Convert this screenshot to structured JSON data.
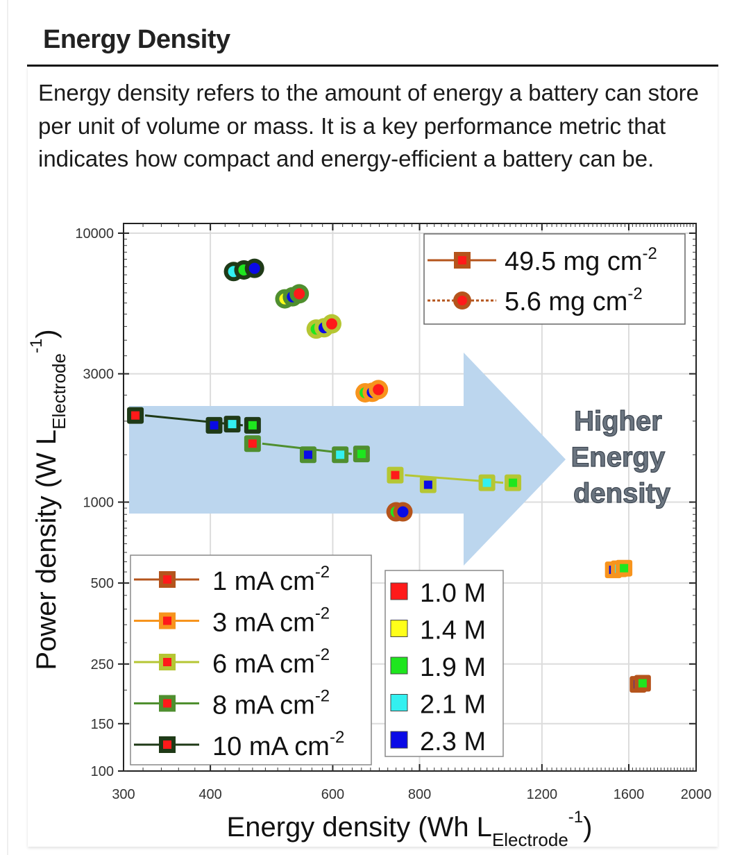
{
  "header": {
    "title": "Energy Density",
    "description": "Energy density refers to the amount of energy a battery can store per unit of volume or mass. It is a key performance metric that indicates how compact and energy-efficient a battery can be."
  },
  "chart_data": {
    "type": "scatter",
    "title": "",
    "xlabel": "Energy density (Wh L",
    "xlabel_sub": "Electrode",
    "xlabel_sup": "-1",
    "ylabel": "Power density (W L",
    "ylabel_sub": "Electrode",
    "ylabel_sup": "-1",
    "xscale": "log",
    "yscale": "log",
    "xlim": [
      300,
      2000
    ],
    "ylim": [
      100,
      10000
    ],
    "xticks": [
      300,
      400,
      600,
      800,
      1200,
      1600,
      2000
    ],
    "yticks": [
      100,
      150,
      250,
      500,
      1000,
      3000,
      10000
    ],
    "grid": true,
    "annotation": {
      "lines": [
        "Higher",
        "Energy",
        "density"
      ],
      "arrow_color": "#bcd6ee"
    },
    "loading_legend": {
      "placement": "top-right",
      "items": [
        {
          "label": "49.5 mg cm",
          "sup": "-2",
          "marker": "square",
          "line": "solid",
          "color": "#b5541c"
        },
        {
          "label": "5.6 mg cm",
          "sup": "-2",
          "marker": "circle",
          "line": "dotted",
          "color": "#b5541c"
        }
      ]
    },
    "current_legend": {
      "placement": "bottom-left",
      "items": [
        {
          "label": "1 mA cm",
          "sup": "-2",
          "color": "#b5541c"
        },
        {
          "label": "3 mA cm",
          "sup": "-2",
          "color": "#f7941d"
        },
        {
          "label": "6 mA cm",
          "sup": "-2",
          "color": "#b5c633"
        },
        {
          "label": "8 mA cm",
          "sup": "-2",
          "color": "#4f8f2f"
        },
        {
          "label": "10 mA cm",
          "sup": "-2",
          "color": "#1f3a17"
        }
      ]
    },
    "concentration_legend": {
      "placement": "bottom-center",
      "items": [
        {
          "label": "1.0 M",
          "color": "#ff1a1a"
        },
        {
          "label": "1.4 M",
          "color": "#ffff1a"
        },
        {
          "label": "1.9 M",
          "color": "#1ee61e"
        },
        {
          "label": "2.1 M",
          "color": "#33f0f0"
        },
        {
          "label": "2.3 M",
          "color": "#0a0ae6"
        }
      ]
    },
    "series": [
      {
        "name": "5.6 mg cm-2 @ 10 mA cm-2",
        "loading": "5.6",
        "current": "10",
        "marker": "circle",
        "edge": "#1f3a17",
        "points": [
          {
            "x": 432,
            "y": 7200,
            "c": "2.1 M"
          },
          {
            "x": 447,
            "y": 7300,
            "c": "1.9 M"
          },
          {
            "x": 463,
            "y": 7400,
            "c": "2.3 M"
          }
        ]
      },
      {
        "name": "5.6 mg cm-2 @ 8 mA cm-2",
        "loading": "5.6",
        "current": "8",
        "marker": "circle",
        "edge": "#4f8f2f",
        "points": [
          {
            "x": 512,
            "y": 5700,
            "c": "1.4 M"
          },
          {
            "x": 525,
            "y": 5800,
            "c": "2.3 M"
          },
          {
            "x": 537,
            "y": 5950,
            "c": "1.0 M"
          }
        ]
      },
      {
        "name": "5.6 mg cm-2 @ 6 mA cm-2",
        "loading": "5.6",
        "current": "6",
        "marker": "circle",
        "edge": "#b5c633",
        "points": [
          {
            "x": 568,
            "y": 4400,
            "c": "1.9 M"
          },
          {
            "x": 583,
            "y": 4450,
            "c": "2.3 M"
          },
          {
            "x": 598,
            "y": 4600,
            "c": "1.0 M"
          }
        ]
      },
      {
        "name": "5.6 mg cm-2 @ 3 mA cm-2",
        "loading": "5.6",
        "current": "3",
        "marker": "circle",
        "edge": "#f7941d",
        "points": [
          {
            "x": 668,
            "y": 2550,
            "c": "1.9 M"
          },
          {
            "x": 684,
            "y": 2560,
            "c": "2.3 M"
          },
          {
            "x": 698,
            "y": 2620,
            "c": "1.0 M"
          }
        ]
      },
      {
        "name": "5.6 mg cm-2 @ 1 mA cm-2",
        "loading": "5.6",
        "current": "1",
        "marker": "circle",
        "edge": "#b5541c",
        "points": [
          {
            "x": 740,
            "y": 920,
            "c": "1.9 M"
          },
          {
            "x": 757,
            "y": 920,
            "c": "2.3 M"
          }
        ]
      },
      {
        "name": "49.5 mg cm-2 @ 10 mA cm-2",
        "loading": "49.5",
        "current": "10",
        "marker": "square",
        "edge": "#1f3a17",
        "points": [
          {
            "x": 312,
            "y": 2100,
            "c": "1.0 M"
          },
          {
            "x": 405,
            "y": 1930,
            "c": "2.3 M"
          },
          {
            "x": 430,
            "y": 1950,
            "c": "2.1 M"
          },
          {
            "x": 460,
            "y": 1930,
            "c": "1.9 M"
          }
        ]
      },
      {
        "name": "49.5 mg cm-2 @ 8 mA cm-2",
        "loading": "49.5",
        "current": "8",
        "marker": "square",
        "edge": "#4f8f2f",
        "points": [
          {
            "x": 460,
            "y": 1650,
            "c": "1.0 M"
          },
          {
            "x": 553,
            "y": 1500,
            "c": "2.3 M"
          },
          {
            "x": 615,
            "y": 1500,
            "c": "2.1 M"
          },
          {
            "x": 660,
            "y": 1510,
            "c": "1.9 M"
          }
        ]
      },
      {
        "name": "49.5 mg cm-2 @ 6 mA cm-2",
        "loading": "49.5",
        "current": "6",
        "marker": "square",
        "edge": "#b5c633",
        "points": [
          {
            "x": 738,
            "y": 1260,
            "c": "1.0 M"
          },
          {
            "x": 823,
            "y": 1160,
            "c": "2.3 M"
          },
          {
            "x": 1000,
            "y": 1180,
            "c": "2.1 M"
          },
          {
            "x": 1090,
            "y": 1180,
            "c": "1.9 M"
          }
        ]
      },
      {
        "name": "49.5 mg cm-2 @ 3 mA cm-2",
        "loading": "49.5",
        "current": "3",
        "marker": "square",
        "edge": "#f7941d",
        "points": [
          {
            "x": 1520,
            "y": 560,
            "c": "2.3 M"
          },
          {
            "x": 1550,
            "y": 565,
            "c": "2.1 M"
          },
          {
            "x": 1575,
            "y": 568,
            "c": "1.9 M"
          }
        ]
      },
      {
        "name": "49.5 mg cm-2 @ 1 mA cm-2",
        "loading": "49.5",
        "current": "1",
        "marker": "square",
        "edge": "#b5541c",
        "points": [
          {
            "x": 1650,
            "y": 210,
            "c": "2.3 M"
          },
          {
            "x": 1675,
            "y": 212,
            "c": "1.9 M"
          }
        ]
      }
    ]
  }
}
